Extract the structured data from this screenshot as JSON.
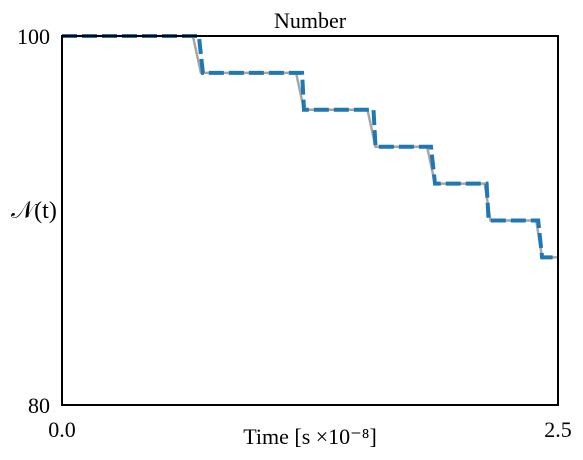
{
  "chart_data": {
    "type": "line",
    "title": "Number",
    "xlabel": "Time [s ×10⁻⁸]",
    "ylabel": "𝒩(t)",
    "xlim": [
      0.0,
      2.5
    ],
    "ylim": [
      80,
      100
    ],
    "xticks": [
      "0.0",
      "2.5"
    ],
    "yticks": [
      "100",
      "80"
    ],
    "grid": false,
    "legend": "none",
    "series": [
      {
        "color": "#a6a6a6",
        "style": "solid",
        "x": [
          0.0,
          0.66,
          0.7,
          1.18,
          1.22,
          1.54,
          1.58,
          1.84,
          1.88,
          2.13,
          2.16,
          2.39,
          2.42,
          2.5
        ],
        "y": [
          100.0,
          100.0,
          98.0,
          98.0,
          96.0,
          96.0,
          94.0,
          94.0,
          92.0,
          92.0,
          90.0,
          90.0,
          88.0,
          88.0
        ]
      },
      {
        "color": "#1f77b4",
        "style": "dashed",
        "x": [
          0.0,
          0.69,
          0.71,
          1.21,
          1.22,
          1.57,
          1.58,
          1.86,
          1.88,
          2.14,
          2.15,
          2.4,
          2.42,
          2.5
        ],
        "y": [
          100.0,
          100.0,
          98.0,
          98.0,
          96.0,
          96.0,
          94.0,
          94.0,
          92.0,
          92.0,
          90.0,
          90.0,
          88.0,
          88.0
        ]
      }
    ]
  }
}
